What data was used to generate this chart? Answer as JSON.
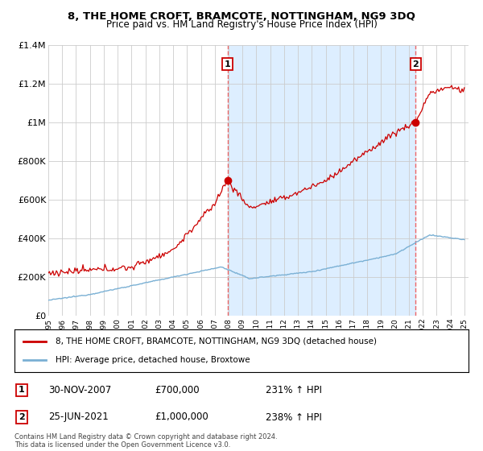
{
  "title": "8, THE HOME CROFT, BRAMCOTE, NOTTINGHAM, NG9 3DQ",
  "subtitle": "Price paid vs. HM Land Registry's House Price Index (HPI)",
  "legend_label_red": "8, THE HOME CROFT, BRAMCOTE, NOTTINGHAM, NG9 3DQ (detached house)",
  "legend_label_blue": "HPI: Average price, detached house, Broxtowe",
  "annotation1_date": "30-NOV-2007",
  "annotation1_price": "£700,000",
  "annotation1_hpi": "231% ↑ HPI",
  "annotation2_date": "25-JUN-2021",
  "annotation2_price": "£1,000,000",
  "annotation2_hpi": "238% ↑ HPI",
  "footer": "Contains HM Land Registry data © Crown copyright and database right 2024.\nThis data is licensed under the Open Government Licence v3.0.",
  "sale1_year": 2007.917,
  "sale1_value": 700000,
  "sale2_year": 2021.479,
  "sale2_value": 1000000,
  "ymax": 1400000,
  "red_color": "#cc0000",
  "blue_color": "#7ab0d4",
  "shade_color": "#ddeeff",
  "vline_color": "#ee6666",
  "background_color": "#ffffff",
  "grid_color": "#cccccc"
}
